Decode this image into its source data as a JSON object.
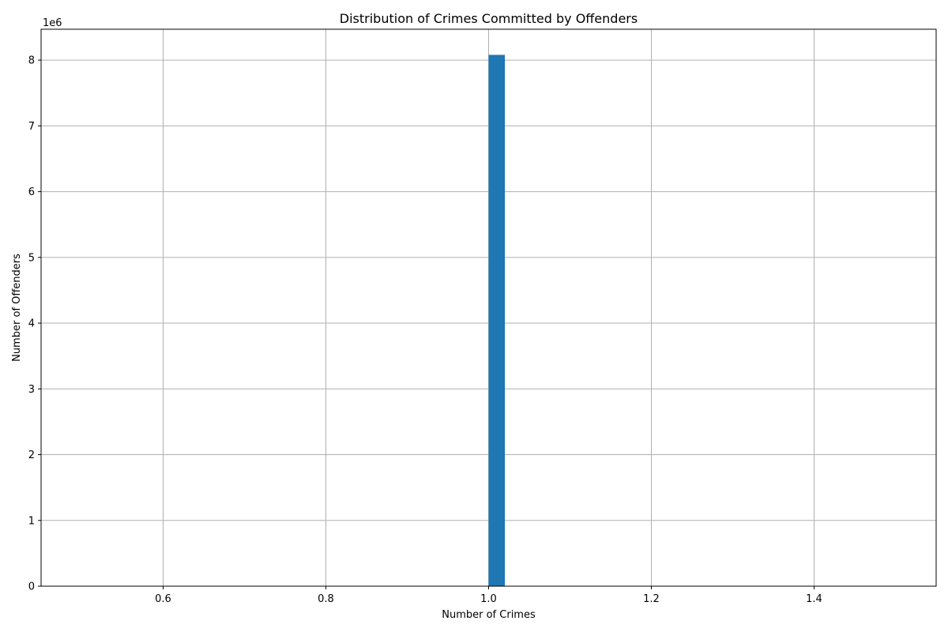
{
  "chart_data": {
    "type": "bar",
    "title": "Distribution of Crimes Committed by Offenders",
    "xlabel": "Number of Crimes",
    "ylabel": "Number of Offenders",
    "y_offset_label": "1e6",
    "xlim": [
      0.45,
      1.55
    ],
    "ylim": [
      0,
      8.47
    ],
    "grid": true,
    "x_ticks": [
      {
        "value": 0.6,
        "label": "0.6"
      },
      {
        "value": 0.8,
        "label": "0.8"
      },
      {
        "value": 1.0,
        "label": "1.0"
      },
      {
        "value": 1.2,
        "label": "1.2"
      },
      {
        "value": 1.4,
        "label": "1.4"
      }
    ],
    "y_ticks": [
      {
        "value": 0,
        "label": "0"
      },
      {
        "value": 1,
        "label": "1"
      },
      {
        "value": 2,
        "label": "2"
      },
      {
        "value": 3,
        "label": "3"
      },
      {
        "value": 4,
        "label": "4"
      },
      {
        "value": 5,
        "label": "5"
      },
      {
        "value": 6,
        "label": "6"
      },
      {
        "value": 7,
        "label": "7"
      },
      {
        "value": 8,
        "label": "8"
      }
    ],
    "bars": [
      {
        "x_start": 1.0,
        "x_end": 1.02,
        "value": 8.08
      }
    ],
    "bar_color": "#1f77b4"
  }
}
